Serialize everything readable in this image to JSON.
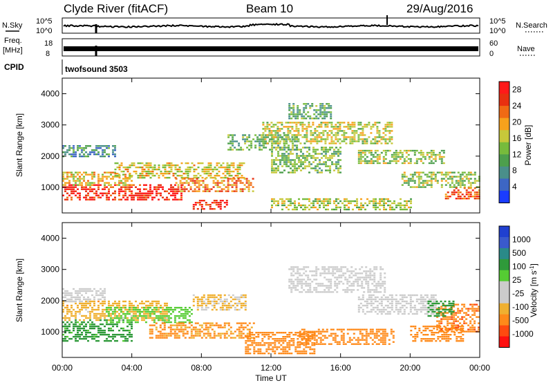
{
  "header": {
    "station": "Clyde River (fitACF)",
    "beam": "Beam 10",
    "date": "29/Aug/2016"
  },
  "side_labels": {
    "nsky": "N.Sky",
    "nsearch": "N.Search",
    "freq_line1": "Freq.",
    "freq_line2": "[MHz]",
    "nave": "Nave",
    "cpid": "CPID",
    "cpid_value": "twofsound 3503"
  },
  "strip_ticks": {
    "noise_left": [
      "10^5",
      "10^0"
    ],
    "noise_right": [
      "10^5",
      "10^0"
    ],
    "freq_left": [
      "18",
      "8"
    ],
    "freq_right": [
      "60",
      "0"
    ]
  },
  "colors": {
    "power_scale": [
      "#1a3cff",
      "#3d66c4",
      "#4a8f8a",
      "#4d9f4d",
      "#77bb3c",
      "#c7c83a",
      "#f7a11c",
      "#f06a14",
      "#e83010",
      "#ff1a1a"
    ],
    "velocity_scale": [
      "#ff1010",
      "#ff4a10",
      "#ff8a1a",
      "#f0b030",
      "#cccccc",
      "#cccccc",
      "#55cc33",
      "#2f9a3a",
      "#2a8a88",
      "#3a5acc",
      "#2040d0"
    ]
  },
  "chart_data": [
    {
      "type": "heatmap",
      "name_hint": "power",
      "ylabel": "Slant Range [km]",
      "ylim": [
        180,
        4500
      ],
      "y_ticks": [
        "1000",
        "2000",
        "3000",
        "4000"
      ],
      "xlim_hours": [
        0,
        24
      ],
      "x_ticks": [
        "00:00",
        "04:00",
        "08:00",
        "12:00",
        "16:00",
        "20:00",
        "00:00"
      ],
      "colorbar": {
        "label": "Power [dB]",
        "range": [
          0,
          30
        ],
        "ticks": [
          "28",
          "24",
          "20",
          "16",
          "12",
          "8",
          "4"
        ]
      },
      "regions": [
        {
          "t": [
            0.0,
            6.8
          ],
          "r": [
            600,
            1100
          ],
          "value": 27
        },
        {
          "t": [
            0.0,
            4.0
          ],
          "r": [
            1100,
            1500
          ],
          "value": 18
        },
        {
          "t": [
            0.0,
            3.0
          ],
          "r": [
            2000,
            2350
          ],
          "value": 8
        },
        {
          "t": [
            3.0,
            10.5
          ],
          "r": [
            1300,
            1800
          ],
          "value": 17
        },
        {
          "t": [
            6.5,
            11.0
          ],
          "r": [
            900,
            1300
          ],
          "value": 21
        },
        {
          "t": [
            7.5,
            9.5
          ],
          "r": [
            300,
            600
          ],
          "value": 26
        },
        {
          "t": [
            9.5,
            13.5
          ],
          "r": [
            2200,
            2700
          ],
          "value": 11
        },
        {
          "t": [
            11.5,
            19.0
          ],
          "r": [
            2400,
            3100
          ],
          "value": 16
        },
        {
          "t": [
            12.0,
            16.0
          ],
          "r": [
            1500,
            2300
          ],
          "value": 13
        },
        {
          "t": [
            12.0,
            20.0
          ],
          "r": [
            300,
            650
          ],
          "value": 15
        },
        {
          "t": [
            17.0,
            22.0
          ],
          "r": [
            1800,
            2200
          ],
          "value": 14
        },
        {
          "t": [
            19.5,
            24.0
          ],
          "r": [
            1000,
            1500
          ],
          "value": 14
        },
        {
          "t": [
            22.0,
            24.0
          ],
          "r": [
            650,
            1000
          ],
          "value": 24
        },
        {
          "t": [
            13.0,
            15.5
          ],
          "r": [
            3200,
            3700
          ],
          "value": 11
        }
      ]
    },
    {
      "type": "heatmap",
      "name_hint": "velocity",
      "ylabel": "Slant Range [km]",
      "ylim": [
        180,
        4500
      ],
      "y_ticks": [
        "1000",
        "2000",
        "3000",
        "4000"
      ],
      "xlim_hours": [
        0,
        24
      ],
      "x_ticks": [
        "00:00",
        "04:00",
        "08:00",
        "12:00",
        "16:00",
        "20:00",
        "00:00"
      ],
      "xlabel": "Time UT",
      "colorbar": {
        "label": "Velocity [m s^-1]",
        "ticks": [
          "1000",
          "500",
          "100",
          "25",
          "-25",
          "-100",
          "-500",
          "-1000"
        ]
      },
      "regions": [
        {
          "t": [
            0.0,
            4.0
          ],
          "r": [
            700,
            1400
          ],
          "value": 150
        },
        {
          "t": [
            0.0,
            6.0
          ],
          "r": [
            1400,
            2000
          ],
          "value": -60
        },
        {
          "t": [
            0.0,
            2.5
          ],
          "r": [
            2000,
            2400
          ],
          "value": 0
        },
        {
          "t": [
            2.5,
            7.5
          ],
          "r": [
            1300,
            1800
          ],
          "value": 60
        },
        {
          "t": [
            5.0,
            11.0
          ],
          "r": [
            800,
            1300
          ],
          "value": -120
        },
        {
          "t": [
            7.5,
            10.5
          ],
          "r": [
            1700,
            2200
          ],
          "value": -30
        },
        {
          "t": [
            10.5,
            14.5
          ],
          "r": [
            300,
            1000
          ],
          "value": -300
        },
        {
          "t": [
            13.0,
            18.5
          ],
          "r": [
            2300,
            3100
          ],
          "value": 0
        },
        {
          "t": [
            13.5,
            19.0
          ],
          "r": [
            600,
            1100
          ],
          "value": -250
        },
        {
          "t": [
            17.0,
            21.5
          ],
          "r": [
            1600,
            2200
          ],
          "value": 0
        },
        {
          "t": [
            20.0,
            23.0
          ],
          "r": [
            700,
            1200
          ],
          "value": -200
        },
        {
          "t": [
            21.5,
            24.0
          ],
          "r": [
            1000,
            1900
          ],
          "value": -400
        },
        {
          "t": [
            21.0,
            22.5
          ],
          "r": [
            1500,
            2000
          ],
          "value": 300
        }
      ]
    }
  ]
}
